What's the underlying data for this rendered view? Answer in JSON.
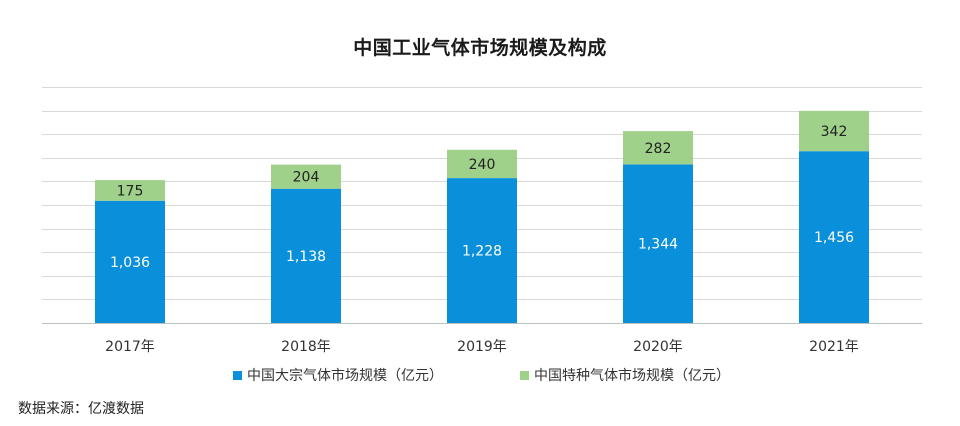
{
  "chart_data": {
    "type": "bar",
    "stacked": true,
    "title": "中国工业气体市场规模及构成",
    "categories": [
      "2017年",
      "2018年",
      "2019年",
      "2020年",
      "2021年"
    ],
    "series": [
      {
        "name": "中国大宗气体市场规模（亿元）",
        "values": [
          1036,
          1138,
          1228,
          1344,
          1456
        ],
        "labels": [
          "1,036",
          "1,138",
          "1,228",
          "1,344",
          "1,456"
        ],
        "color": "#0a8fdb"
      },
      {
        "name": "中国特种气体市场规模（亿元）",
        "values": [
          175,
          204,
          240,
          282,
          342
        ],
        "labels": [
          "175",
          "204",
          "240",
          "282",
          "342"
        ],
        "color": "#9fd18b"
      }
    ],
    "ylim": [
      0,
      2000
    ],
    "grid": true,
    "legend_position": "bottom"
  },
  "source_text": "数据来源：亿渡数据"
}
